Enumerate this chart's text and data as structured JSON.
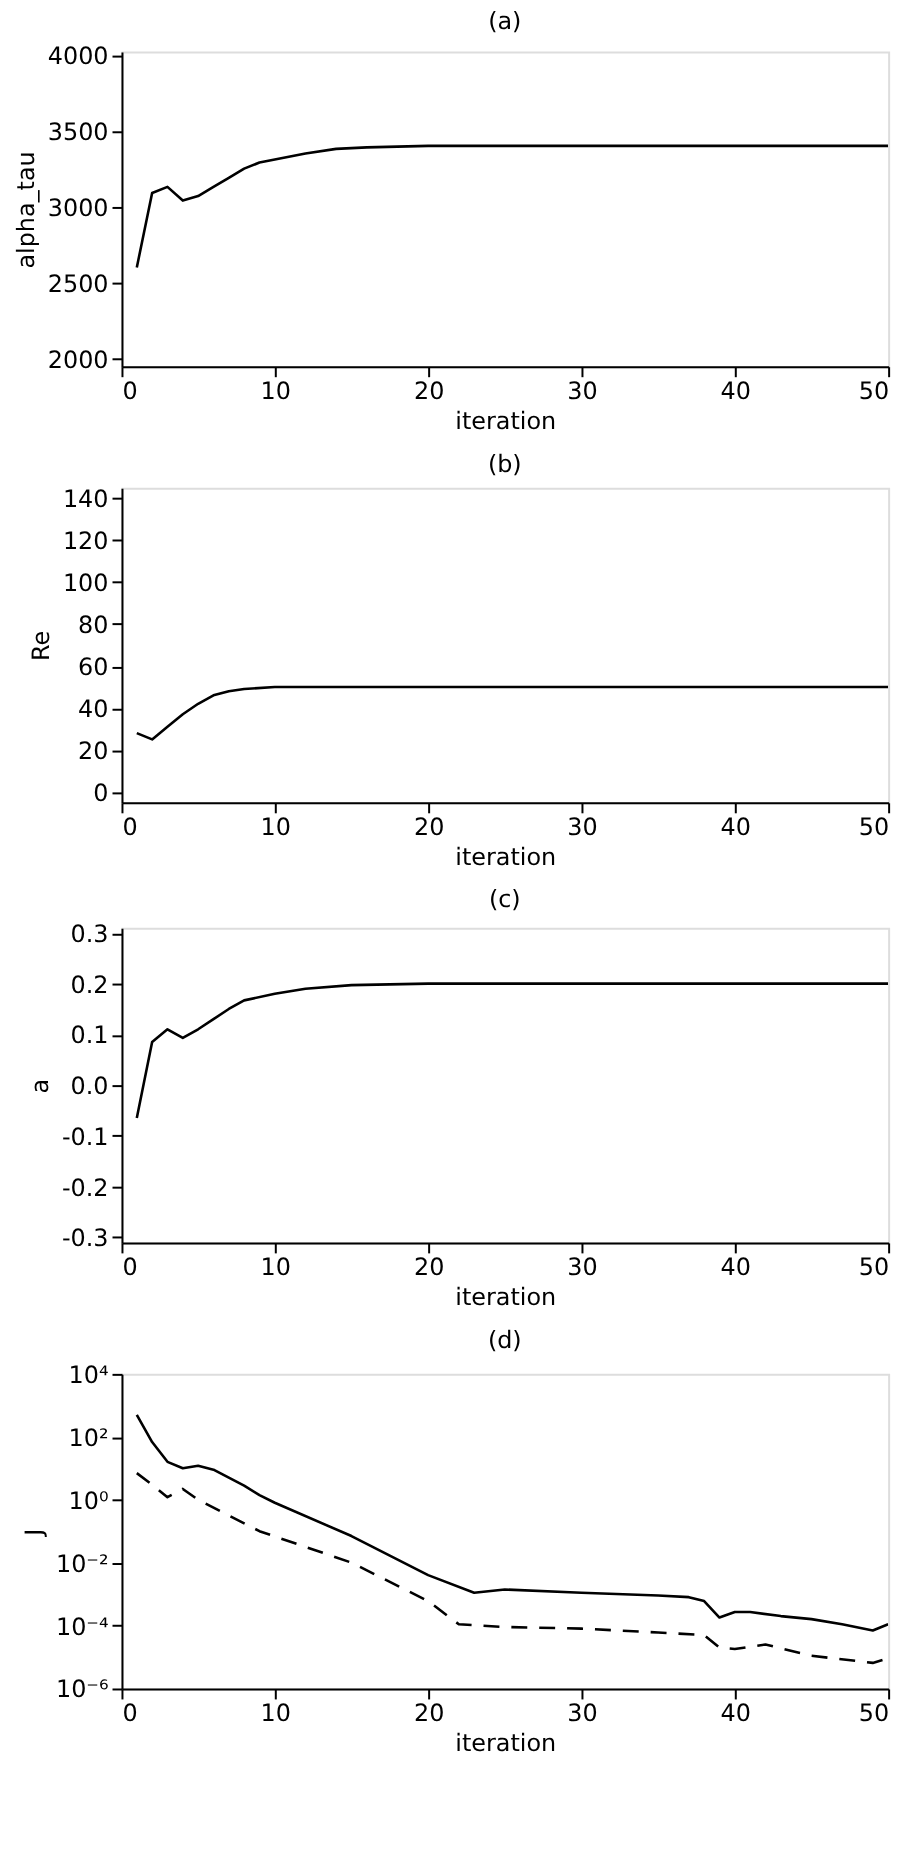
{
  "chart_data": [
    {
      "type": "line",
      "title": "(a)",
      "xlabel": "iteration",
      "ylabel": "alpha_tau",
      "xlim": [
        0,
        50
      ],
      "xticks": [
        0,
        10,
        20,
        30,
        40,
        50
      ],
      "ylim": [
        1950,
        4020
      ],
      "yticks": [
        2000,
        2500,
        3000,
        3500,
        4000
      ],
      "grid": false,
      "line_style": "solid",
      "x": [
        1,
        2,
        3,
        4,
        5,
        6,
        7,
        8,
        9,
        10,
        12,
        14,
        16,
        20,
        30,
        50
      ],
      "series": [
        {
          "color": "#000000",
          "values": [
            2600,
            3090,
            3130,
            3040,
            3070,
            3130,
            3190,
            3250,
            3290,
            3310,
            3350,
            3380,
            3390,
            3400,
            3400,
            3400
          ]
        }
      ]
    },
    {
      "type": "line",
      "title": "(b)",
      "xlabel": "iteration",
      "ylabel": "Re",
      "xlim": [
        0,
        50
      ],
      "xticks": [
        0,
        10,
        20,
        30,
        40,
        50
      ],
      "ylim": [
        -5,
        145
      ],
      "yticks": [
        0,
        20,
        40,
        60,
        80,
        100,
        120,
        140
      ],
      "grid": false,
      "line_style": "solid",
      "x": [
        1,
        2,
        3,
        4,
        5,
        6,
        7,
        8,
        10,
        15,
        50
      ],
      "series": [
        {
          "color": "#000000",
          "values": [
            28,
            25,
            31,
            37,
            42,
            46,
            48,
            49,
            50,
            50,
            50
          ]
        }
      ]
    },
    {
      "type": "line",
      "title": "(c)",
      "xlabel": "iteration",
      "ylabel": "a",
      "xlim": [
        0,
        50
      ],
      "xticks": [
        0,
        10,
        20,
        30,
        40,
        50
      ],
      "ylim": [
        -0.31,
        0.31
      ],
      "yticks": [
        {
          "value": -0.3,
          "label": "-0.3"
        },
        {
          "value": -0.2,
          "label": "-0.2"
        },
        {
          "value": -0.1,
          "label": "-0.1"
        },
        {
          "value": 0,
          "label": "0.0"
        },
        {
          "value": 0.1,
          "label": "0.1"
        },
        {
          "value": 0.2,
          "label": "0.2"
        },
        {
          "value": 0.3,
          "label": "0.3"
        }
      ],
      "grid": false,
      "line_style": "solid",
      "x": [
        1,
        2,
        3,
        4,
        5,
        6,
        7,
        8,
        10,
        12,
        15,
        20,
        50
      ],
      "series": [
        {
          "color": "#000000",
          "values": [
            -0.065,
            0.085,
            0.11,
            0.093,
            0.11,
            0.13,
            0.15,
            0.167,
            0.18,
            0.19,
            0.197,
            0.2,
            0.2
          ]
        }
      ]
    },
    {
      "type": "line",
      "title": "(d)",
      "xlabel": "iteration",
      "ylabel": "J",
      "log": "y",
      "xlim": [
        0,
        50
      ],
      "xticks": [
        0,
        10,
        20,
        30,
        40,
        50
      ],
      "ylim": [
        1e-06,
        10000
      ],
      "yticks": [
        {
          "value": 1e-06,
          "label": "10⁻⁶"
        },
        {
          "value": 0.0001,
          "label": "10⁻⁴"
        },
        {
          "value": 0.01,
          "label": "10⁻²"
        },
        {
          "value": 1,
          "label": "10⁰"
        },
        {
          "value": 100,
          "label": "10²"
        },
        {
          "value": 10000,
          "label": "10⁴"
        }
      ],
      "grid": false,
      "series": [
        {
          "color": "#000000",
          "line_style": "solid",
          "x": [
            1,
            2,
            3,
            4,
            5,
            6,
            8,
            9,
            10,
            15,
            20,
            23,
            25,
            30,
            35,
            37,
            38,
            39,
            40,
            41,
            43,
            45,
            47,
            49,
            50
          ],
          "values": [
            500,
            68,
            16,
            10,
            12,
            9,
            2.8,
            1.4,
            0.8,
            0.07,
            0.004,
            0.0011,
            0.0014,
            0.0011,
            0.0009,
            0.0008,
            0.0006,
            0.00018,
            0.00027,
            0.00027,
            0.0002,
            0.00016,
            0.00011,
            7e-05,
            0.00011
          ]
        },
        {
          "color": "#000000",
          "line_style": "dashed",
          "x": [
            1,
            2,
            3,
            4,
            5,
            9,
            15,
            20,
            22,
            25,
            30,
            35,
            38,
            39,
            40,
            42,
            45,
            49,
            50
          ],
          "values": [
            7,
            3,
            1.2,
            2.2,
            1.0,
            0.1,
            0.01,
            0.0006,
            0.00011,
            9e-05,
            8e-05,
            6e-05,
            5e-05,
            2e-05,
            1.8e-05,
            2.5e-05,
            1.1e-05,
            6.5e-06,
            9e-06
          ]
        }
      ]
    }
  ]
}
